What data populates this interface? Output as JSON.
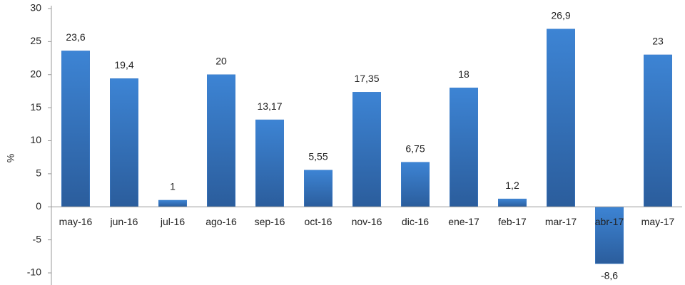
{
  "chart_data": {
    "type": "bar",
    "y_label": "%",
    "categories": [
      "may-16",
      "jun-16",
      "jul-16",
      "ago-16",
      "sep-16",
      "oct-16",
      "nov-16",
      "dic-16",
      "ene-17",
      "feb-17",
      "mar-17",
      "abr-17",
      "may-17"
    ],
    "values": [
      23.6,
      19.4,
      1,
      20,
      13.17,
      5.55,
      17.35,
      6.75,
      18,
      1.2,
      26.9,
      -8.6,
      23
    ],
    "value_labels": [
      "23,6",
      "19,4",
      "1",
      "20",
      "13,17",
      "5,55",
      "17,35",
      "6,75",
      "18",
      "1,2",
      "26,9",
      "-8,6",
      "23"
    ],
    "color": "#3a7bc8",
    "ylim": [
      -10,
      30
    ],
    "yticks": [
      -10,
      -5,
      0,
      5,
      10,
      15,
      20,
      25,
      30
    ],
    "grid": false
  }
}
